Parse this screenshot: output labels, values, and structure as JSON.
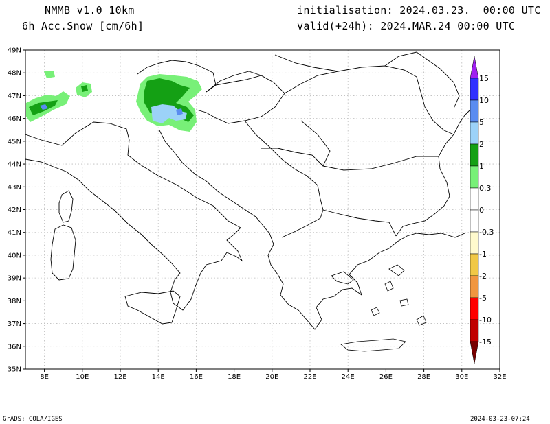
{
  "header": {
    "model": "NMMB_v1.0_10km",
    "variable": "6h Acc.Snow [cm/6h]",
    "init": "initialisation: 2024.03.23.  00:00 UTC",
    "valid": "valid(+24h): 2024.MAR.24 00:00 UTC"
  },
  "map": {
    "lon_range": [
      7,
      32
    ],
    "lat_range": [
      35,
      49
    ],
    "lon_ticks": [
      "8E",
      "10E",
      "12E",
      "14E",
      "16E",
      "18E",
      "20E",
      "22E",
      "24E",
      "26E",
      "28E",
      "30E",
      "32E"
    ],
    "lat_ticks": [
      "35N",
      "36N",
      "37N",
      "38N",
      "39N",
      "40N",
      "41N",
      "42N",
      "43N",
      "44N",
      "45N",
      "46N",
      "47N",
      "48N",
      "49N"
    ],
    "grid": true
  },
  "colorbar": {
    "labels": [
      "15",
      "10",
      "5",
      "2",
      "1",
      "0.3",
      "0",
      "-0.3",
      "-1",
      "-2",
      "-5",
      "-10",
      "-15"
    ],
    "colors_top_to_bottom": [
      "#a020f0",
      "#3030ff",
      "#5a8cf0",
      "#9cd2f8",
      "#14a014",
      "#78f078",
      "#ffffff",
      "#ffffff",
      "#fffacd",
      "#f0c846",
      "#f09640",
      "#ff0000",
      "#c00000",
      "#780000"
    ]
  },
  "footer": {
    "left": "GrADS: COLA/IGES",
    "right": "2024-03-23-07:24"
  }
}
